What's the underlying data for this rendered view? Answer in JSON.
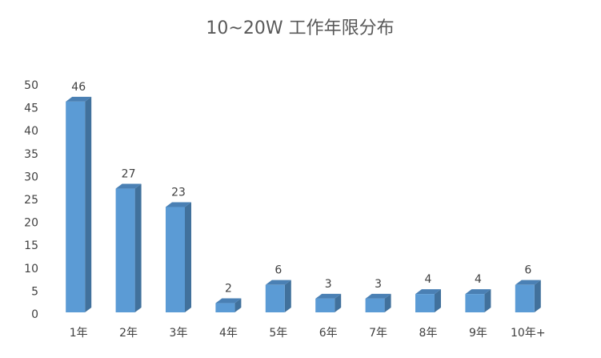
{
  "chart_data": {
    "type": "bar3d",
    "title": "10~20W 工作年限分布",
    "categories": [
      "1年",
      "2年",
      "3年",
      "4年",
      "5年",
      "6年",
      "7年",
      "8年",
      "9年",
      "10年+"
    ],
    "values": [
      46,
      27,
      23,
      2,
      6,
      3,
      3,
      4,
      4,
      6
    ],
    "color": "#5b9bd5",
    "ylim": [
      0,
      50
    ],
    "yticks": [
      0,
      5,
      10,
      15,
      20,
      25,
      30,
      35,
      40,
      45,
      50
    ],
    "grid": false
  }
}
